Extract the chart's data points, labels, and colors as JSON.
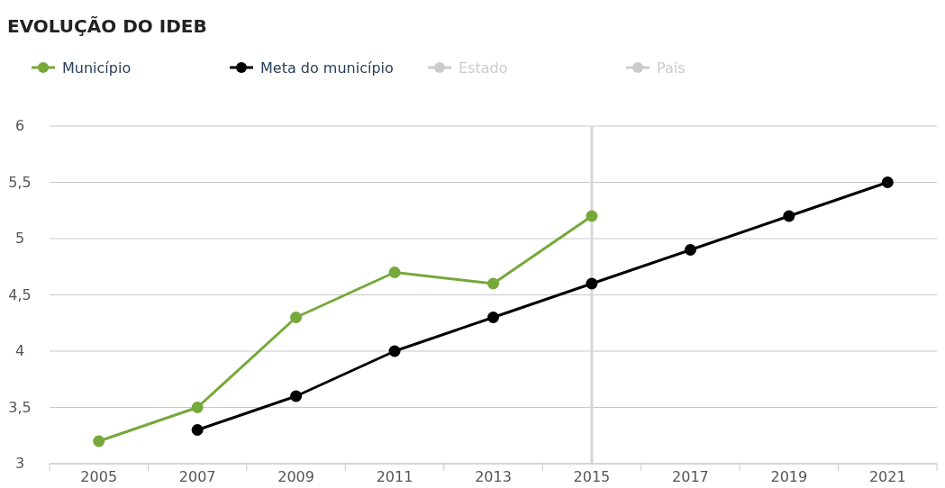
{
  "chart_data": {
    "type": "line",
    "title": "EVOLUÇÃO DO IDEB",
    "categories": [
      "2005",
      "2007",
      "2009",
      "2011",
      "2013",
      "2015",
      "2017",
      "2019",
      "2021"
    ],
    "series": [
      {
        "name": "Município",
        "color": "#76a83a",
        "values": [
          3.2,
          3.5,
          4.3,
          4.7,
          4.6,
          5.2,
          null,
          null,
          null
        ]
      },
      {
        "name": "Meta do município",
        "color": "#000000",
        "values": [
          null,
          3.3,
          3.6,
          4.0,
          4.3,
          4.6,
          4.9,
          5.2,
          5.5
        ]
      },
      {
        "name": "Estado",
        "color": "#cccccc",
        "values": [
          null,
          null,
          null,
          null,
          null,
          null,
          null,
          null,
          null
        ]
      },
      {
        "name": "País",
        "color": "#cccccc",
        "values": [
          null,
          null,
          null,
          null,
          null,
          null,
          null,
          null,
          null
        ]
      }
    ],
    "ylim": [
      3,
      6
    ],
    "yticks": [
      3,
      {
        "value": 3.5,
        "label": "3,5"
      },
      4,
      {
        "value": 4.5,
        "label": "4,5"
      },
      5,
      {
        "value": 5.5,
        "label": "5,5"
      },
      6
    ],
    "grid": "y",
    "legend": "top left",
    "marker": "circle",
    "line_style": "solid",
    "ref_lines": [
      {
        "axis": "x",
        "value": "2015",
        "color": "#d8d8d8"
      }
    ]
  }
}
